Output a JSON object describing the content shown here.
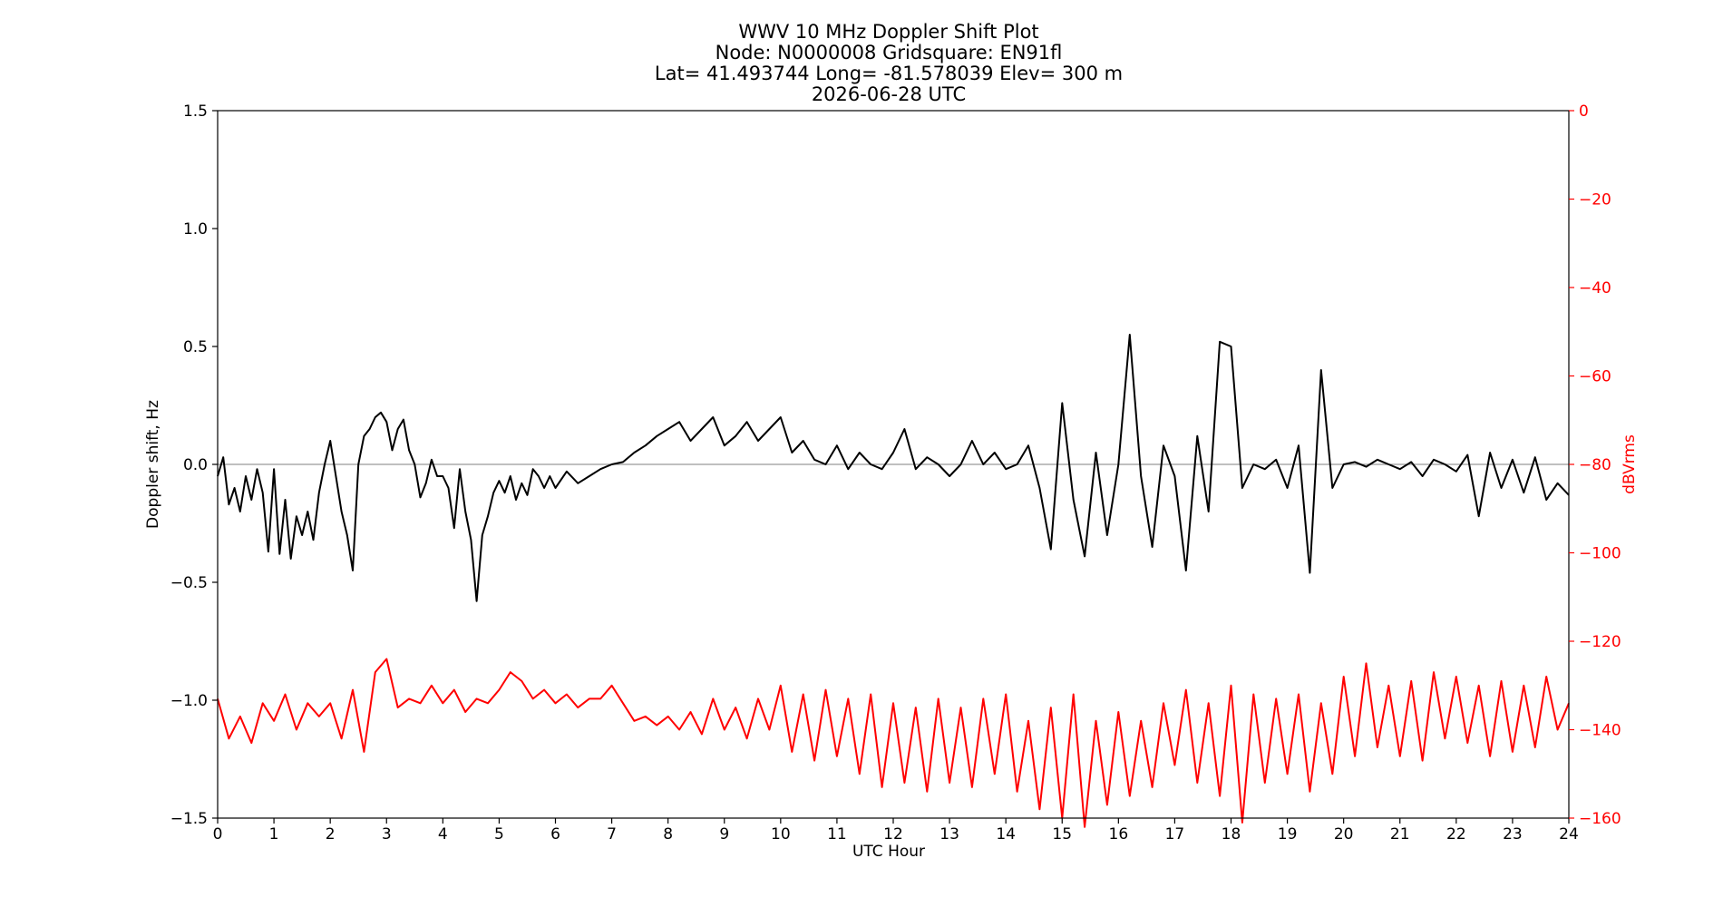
{
  "chart_data": {
    "type": "line",
    "title_lines": [
      "WWV 10 MHz Doppler Shift Plot",
      "Node:  N0000008     Gridsquare:  EN91fl",
      "Lat= 41.493744    Long= -81.578039    Elev= 300 m",
      "2026-06-28  UTC"
    ],
    "xlabel": "UTC Hour",
    "ylabel": "Doppler shift, Hz",
    "ylabel_right": "dBVrms",
    "xlim": [
      0,
      24
    ],
    "ylim": [
      -1.5,
      1.5
    ],
    "ylim_right": [
      -160,
      0
    ],
    "x_ticks": [
      0,
      1,
      2,
      3,
      4,
      5,
      6,
      7,
      8,
      9,
      10,
      11,
      12,
      13,
      14,
      15,
      16,
      17,
      18,
      19,
      20,
      21,
      22,
      23,
      24
    ],
    "x_tick_labels": [
      "0",
      "1",
      "2",
      "3",
      "4",
      "5",
      "6",
      "7",
      "8",
      "9",
      "10",
      "11",
      "12",
      "13",
      "14",
      "15",
      "16",
      "17",
      "18",
      "19",
      "20",
      "21",
      "22",
      "23",
      "24"
    ],
    "y_ticks": [
      -1.5,
      -1.0,
      -0.5,
      0.0,
      0.5,
      1.0,
      1.5
    ],
    "y_tick_labels": [
      "−1.5",
      "−1.0",
      "−0.5",
      "0.0",
      "0.5",
      "1.0",
      "1.5"
    ],
    "y_ticks_right": [
      0,
      -20,
      -40,
      -60,
      -80,
      -100,
      -120,
      -140,
      -160
    ],
    "y_tick_labels_right": [
      "0",
      "−20",
      "−40",
      "−60",
      "−80",
      "−100",
      "−120",
      "−140",
      "−160"
    ],
    "reference_line_y": 0.0,
    "grid": false,
    "colors": {
      "doppler": "#000000",
      "power": "#ff0000",
      "reference": "#999999",
      "right_axis": "#ff0000"
    },
    "series": [
      {
        "axis": "left",
        "x": [
          0,
          0.1,
          0.2,
          0.3,
          0.4,
          0.5,
          0.6,
          0.7,
          0.8,
          0.9,
          1.0,
          1.1,
          1.2,
          1.3,
          1.4,
          1.5,
          1.6,
          1.7,
          1.8,
          1.9,
          2.0,
          2.1,
          2.2,
          2.3,
          2.4,
          2.5,
          2.6,
          2.7,
          2.8,
          2.9,
          3.0,
          3.1,
          3.2,
          3.3,
          3.4,
          3.5,
          3.6,
          3.7,
          3.8,
          3.9,
          4.0,
          4.1,
          4.2,
          4.3,
          4.4,
          4.5,
          4.6,
          4.7,
          4.8,
          4.9,
          5.0,
          5.1,
          5.2,
          5.3,
          5.4,
          5.5,
          5.6,
          5.7,
          5.8,
          5.9,
          6.0,
          6.2,
          6.4,
          6.6,
          6.8,
          7.0,
          7.2,
          7.4,
          7.6,
          7.8,
          8.0,
          8.2,
          8.4,
          8.6,
          8.8,
          9.0,
          9.2,
          9.4,
          9.6,
          9.8,
          10.0,
          10.2,
          10.4,
          10.6,
          10.8,
          11.0,
          11.2,
          11.4,
          11.6,
          11.8,
          12.0,
          12.2,
          12.4,
          12.6,
          12.8,
          13.0,
          13.2,
          13.4,
          13.6,
          13.8,
          14.0,
          14.2,
          14.4,
          14.6,
          14.8,
          15.0,
          15.2,
          15.4,
          15.6,
          15.8,
          16.0,
          16.2,
          16.4,
          16.6,
          16.8,
          17.0,
          17.2,
          17.4,
          17.6,
          17.8,
          18.0,
          18.2,
          18.4,
          18.6,
          18.8,
          19.0,
          19.2,
          19.4,
          19.6,
          19.8,
          20.0,
          20.2,
          20.4,
          20.6,
          20.8,
          21.0,
          21.2,
          21.4,
          21.6,
          21.8,
          22.0,
          22.2,
          22.4,
          22.6,
          22.8,
          23.0,
          23.2,
          23.4,
          23.6,
          23.8,
          24.0
        ],
        "y": [
          -0.05,
          0.03,
          -0.17,
          -0.1,
          -0.2,
          -0.05,
          -0.15,
          -0.02,
          -0.12,
          -0.37,
          -0.02,
          -0.38,
          -0.15,
          -0.4,
          -0.22,
          -0.3,
          -0.2,
          -0.32,
          -0.12,
          0.0,
          0.1,
          -0.05,
          -0.2,
          -0.3,
          -0.45,
          0.0,
          0.12,
          0.15,
          0.2,
          0.22,
          0.18,
          0.06,
          0.15,
          0.19,
          0.06,
          0.0,
          -0.14,
          -0.08,
          0.02,
          -0.05,
          -0.05,
          -0.1,
          -0.27,
          -0.02,
          -0.2,
          -0.32,
          -0.58,
          -0.3,
          -0.22,
          -0.12,
          -0.07,
          -0.12,
          -0.05,
          -0.15,
          -0.08,
          -0.13,
          -0.02,
          -0.05,
          -0.1,
          -0.05,
          -0.1,
          -0.03,
          -0.08,
          -0.05,
          -0.02,
          0.0,
          0.01,
          0.05,
          0.08,
          0.12,
          0.15,
          0.18,
          0.1,
          0.15,
          0.2,
          0.08,
          0.12,
          0.18,
          0.1,
          0.15,
          0.2,
          0.05,
          0.1,
          0.02,
          0.0,
          0.08,
          -0.02,
          0.05,
          0.0,
          -0.02,
          0.05,
          0.15,
          -0.02,
          0.03,
          0.0,
          -0.05,
          0.0,
          0.1,
          0.0,
          0.05,
          -0.02,
          0.0,
          0.08,
          -0.1,
          -0.36,
          0.26,
          -0.15,
          -0.39,
          0.05,
          -0.3,
          0.0,
          0.55,
          -0.05,
          -0.35,
          0.08,
          -0.05,
          -0.45,
          0.12,
          -0.2,
          0.52,
          0.5,
          -0.1,
          0.0,
          -0.02,
          0.02,
          -0.1,
          0.08,
          -0.46,
          0.4,
          -0.1,
          0.0,
          0.01,
          -0.01,
          0.02,
          0.0,
          -0.02,
          0.01,
          -0.05,
          0.02,
          0.0,
          -0.03,
          0.04,
          -0.22,
          0.05,
          -0.1,
          0.02,
          -0.12,
          0.03,
          -0.15,
          -0.08,
          -0.13
        ]
      },
      {
        "axis": "right",
        "x": [
          0,
          0.2,
          0.4,
          0.6,
          0.8,
          1.0,
          1.2,
          1.4,
          1.6,
          1.8,
          2.0,
          2.2,
          2.4,
          2.6,
          2.8,
          3.0,
          3.2,
          3.4,
          3.6,
          3.8,
          4.0,
          4.2,
          4.4,
          4.6,
          4.8,
          5.0,
          5.2,
          5.4,
          5.6,
          5.8,
          6.0,
          6.2,
          6.4,
          6.6,
          6.8,
          7.0,
          7.2,
          7.4,
          7.6,
          7.8,
          8.0,
          8.2,
          8.4,
          8.6,
          8.8,
          9.0,
          9.2,
          9.4,
          9.6,
          9.8,
          10.0,
          10.2,
          10.4,
          10.6,
          10.8,
          11.0,
          11.2,
          11.4,
          11.6,
          11.8,
          12.0,
          12.2,
          12.4,
          12.6,
          12.8,
          13.0,
          13.2,
          13.4,
          13.6,
          13.8,
          14.0,
          14.2,
          14.4,
          14.6,
          14.8,
          15.0,
          15.2,
          15.4,
          15.6,
          15.8,
          16.0,
          16.2,
          16.4,
          16.6,
          16.8,
          17.0,
          17.2,
          17.4,
          17.6,
          17.8,
          18.0,
          18.2,
          18.4,
          18.6,
          18.8,
          19.0,
          19.2,
          19.4,
          19.6,
          19.8,
          20.0,
          20.2,
          20.4,
          20.6,
          20.8,
          21.0,
          21.2,
          21.4,
          21.6,
          21.8,
          22.0,
          22.2,
          22.4,
          22.6,
          22.8,
          23.0,
          23.2,
          23.4,
          23.6,
          23.8,
          24.0
        ],
        "y": [
          -133,
          -142,
          -137,
          -143,
          -134,
          -138,
          -132,
          -140,
          -134,
          -137,
          -134,
          -142,
          -131,
          -145,
          -127,
          -124,
          -135,
          -133,
          -134,
          -130,
          -134,
          -131,
          -136,
          -133,
          -134,
          -131,
          -127,
          -129,
          -133,
          -131,
          -134,
          -132,
          -135,
          -133,
          -133,
          -130,
          -134,
          -138,
          -137,
          -139,
          -137,
          -140,
          -136,
          -141,
          -133,
          -140,
          -135,
          -142,
          -133,
          -140,
          -130,
          -145,
          -132,
          -147,
          -131,
          -146,
          -133,
          -150,
          -132,
          -153,
          -134,
          -152,
          -135,
          -154,
          -133,
          -152,
          -135,
          -153,
          -133,
          -150,
          -132,
          -154,
          -138,
          -158,
          -135,
          -160,
          -132,
          -162,
          -138,
          -157,
          -136,
          -155,
          -138,
          -153,
          -134,
          -148,
          -131,
          -152,
          -134,
          -155,
          -130,
          -161,
          -132,
          -152,
          -133,
          -150,
          -132,
          -154,
          -134,
          -150,
          -128,
          -146,
          -125,
          -144,
          -130,
          -146,
          -129,
          -147,
          -127,
          -142,
          -128,
          -143,
          -130,
          -146,
          -129,
          -145,
          -130,
          -144,
          -128,
          -140,
          -134
        ]
      }
    ]
  }
}
